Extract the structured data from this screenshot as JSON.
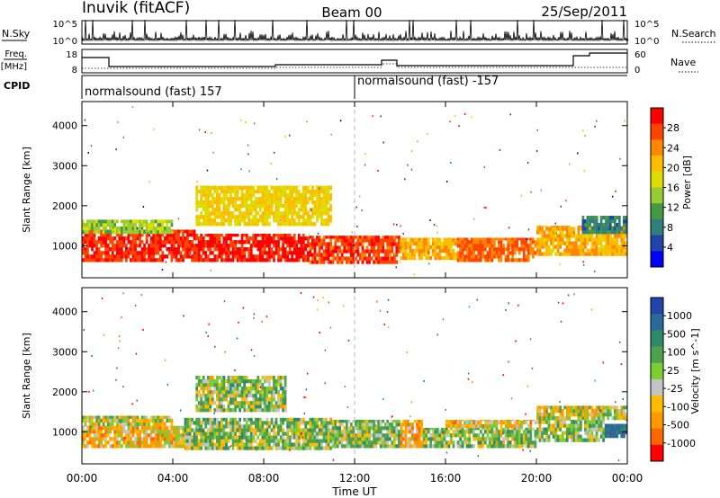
{
  "header": {
    "station": "Inuvik (fitACF)",
    "beam": "Beam 00",
    "date": "25/Sep/2011"
  },
  "noise_panel": {
    "left_label": "N.Sky",
    "right_label": "N.Search",
    "left_ticks": [
      "10^5",
      "10^0"
    ],
    "right_ticks": [
      "10^5",
      "10^0"
    ]
  },
  "freq_panel": {
    "left_label_1": "Freq.",
    "left_label_2": "[MHz]",
    "right_label": "Nave",
    "left_ticks": [
      "18",
      "8"
    ],
    "right_ticks": [
      "60",
      "0"
    ]
  },
  "cpid_panel": {
    "label": "CPID",
    "segments": [
      {
        "text": "normalsound (fast) 157",
        "start_hour": 0
      },
      {
        "text": "normalsound (fast) -157",
        "start_hour": 12
      }
    ]
  },
  "y_axis": {
    "label": "Slant Range [km]",
    "ticks": [
      "1000",
      "2000",
      "3000",
      "4000"
    ]
  },
  "x_axis": {
    "label": "Time UT",
    "ticks": [
      "00:00",
      "04:00",
      "08:00",
      "12:00",
      "16:00",
      "20:00",
      "00:00"
    ]
  },
  "power_colorbar": {
    "label": "Power [dB]",
    "ticks": [
      "28",
      "24",
      "20",
      "16",
      "12",
      "8",
      "4"
    ],
    "colors": [
      "#ff0000",
      "#ff4400",
      "#ff8800",
      "#ffbb00",
      "#dddd00",
      "#99cc33",
      "#449944",
      "#2f7f7f",
      "#2244aa",
      "#0000ff"
    ]
  },
  "velocity_colorbar": {
    "label": "Velocity [m s^-1]",
    "ticks": [
      "1000",
      "500",
      "100",
      "25",
      "-25",
      "-100",
      "-500",
      "-1000"
    ],
    "colors": [
      "#1f44aa",
      "#2a6a9a",
      "#2f8a6a",
      "#4ea24e",
      "#7ccc33",
      "#c4c4c4",
      "#ffbb00",
      "#ff9900",
      "#ff6600",
      "#ff0000"
    ]
  },
  "chart_data": [
    {
      "type": "heatmap",
      "name": "power",
      "title": "",
      "xlabel": "Time UT",
      "ylabel": "Slant Range [km]",
      "xlim": [
        0,
        24
      ],
      "ylim": [
        200,
        4600
      ],
      "units": "dB",
      "value_range": [
        0,
        30
      ],
      "bands": [
        {
          "hours": [
            0,
            5
          ],
          "range_km": [
            600,
            1400
          ],
          "value": 27
        },
        {
          "hours": [
            5,
            10
          ],
          "range_km": [
            600,
            1300
          ],
          "value": 28
        },
        {
          "hours": [
            10,
            14
          ],
          "range_km": [
            550,
            1250
          ],
          "value": 26
        },
        {
          "hours": [
            14,
            16.5
          ],
          "range_km": [
            650,
            1200
          ],
          "value": 20
        },
        {
          "hours": [
            16.5,
            20
          ],
          "range_km": [
            600,
            1200
          ],
          "value": 24
        },
        {
          "hours": [
            20,
            24
          ],
          "range_km": [
            750,
            1500
          ],
          "value": 20
        },
        {
          "hours": [
            5,
            11
          ],
          "range_km": [
            1500,
            2500
          ],
          "value": 18
        },
        {
          "hours": [
            0,
            4
          ],
          "range_km": [
            1300,
            1650
          ],
          "value": 14
        },
        {
          "hours": [
            22,
            24
          ],
          "range_km": [
            1300,
            1750
          ],
          "value": 8
        }
      ]
    },
    {
      "type": "heatmap",
      "name": "velocity",
      "title": "",
      "xlabel": "Time UT",
      "ylabel": "Slant Range [km]",
      "xlim": [
        0,
        24
      ],
      "ylim": [
        200,
        4600
      ],
      "units": "m s^-1",
      "value_range": [
        -1000,
        1000
      ],
      "bands": [
        {
          "hours": [
            0,
            4.5
          ],
          "range_km": [
            600,
            1150
          ],
          "value": -100
        },
        {
          "hours": [
            0,
            4
          ],
          "range_km": [
            1150,
            1400
          ],
          "value": 0
        },
        {
          "hours": [
            4.5,
            11
          ],
          "range_km": [
            550,
            1350
          ],
          "value": 90
        },
        {
          "hours": [
            11,
            14
          ],
          "range_km": [
            600,
            1300
          ],
          "value": 90
        },
        {
          "hours": [
            14,
            15
          ],
          "range_km": [
            600,
            1300
          ],
          "value": -150
        },
        {
          "hours": [
            15,
            20
          ],
          "range_km": [
            600,
            1100
          ],
          "value": 90
        },
        {
          "hours": [
            16,
            20
          ],
          "range_km": [
            1100,
            1300
          ],
          "value": -100
        },
        {
          "hours": [
            20,
            23
          ],
          "range_km": [
            750,
            1300
          ],
          "value": 80
        },
        {
          "hours": [
            20,
            24
          ],
          "range_km": [
            1300,
            1650
          ],
          "value": 0
        },
        {
          "hours": [
            23,
            24
          ],
          "range_km": [
            850,
            1200
          ],
          "value": 600
        },
        {
          "hours": [
            5,
            9
          ],
          "range_km": [
            1500,
            2400
          ],
          "value": 80
        }
      ]
    }
  ]
}
